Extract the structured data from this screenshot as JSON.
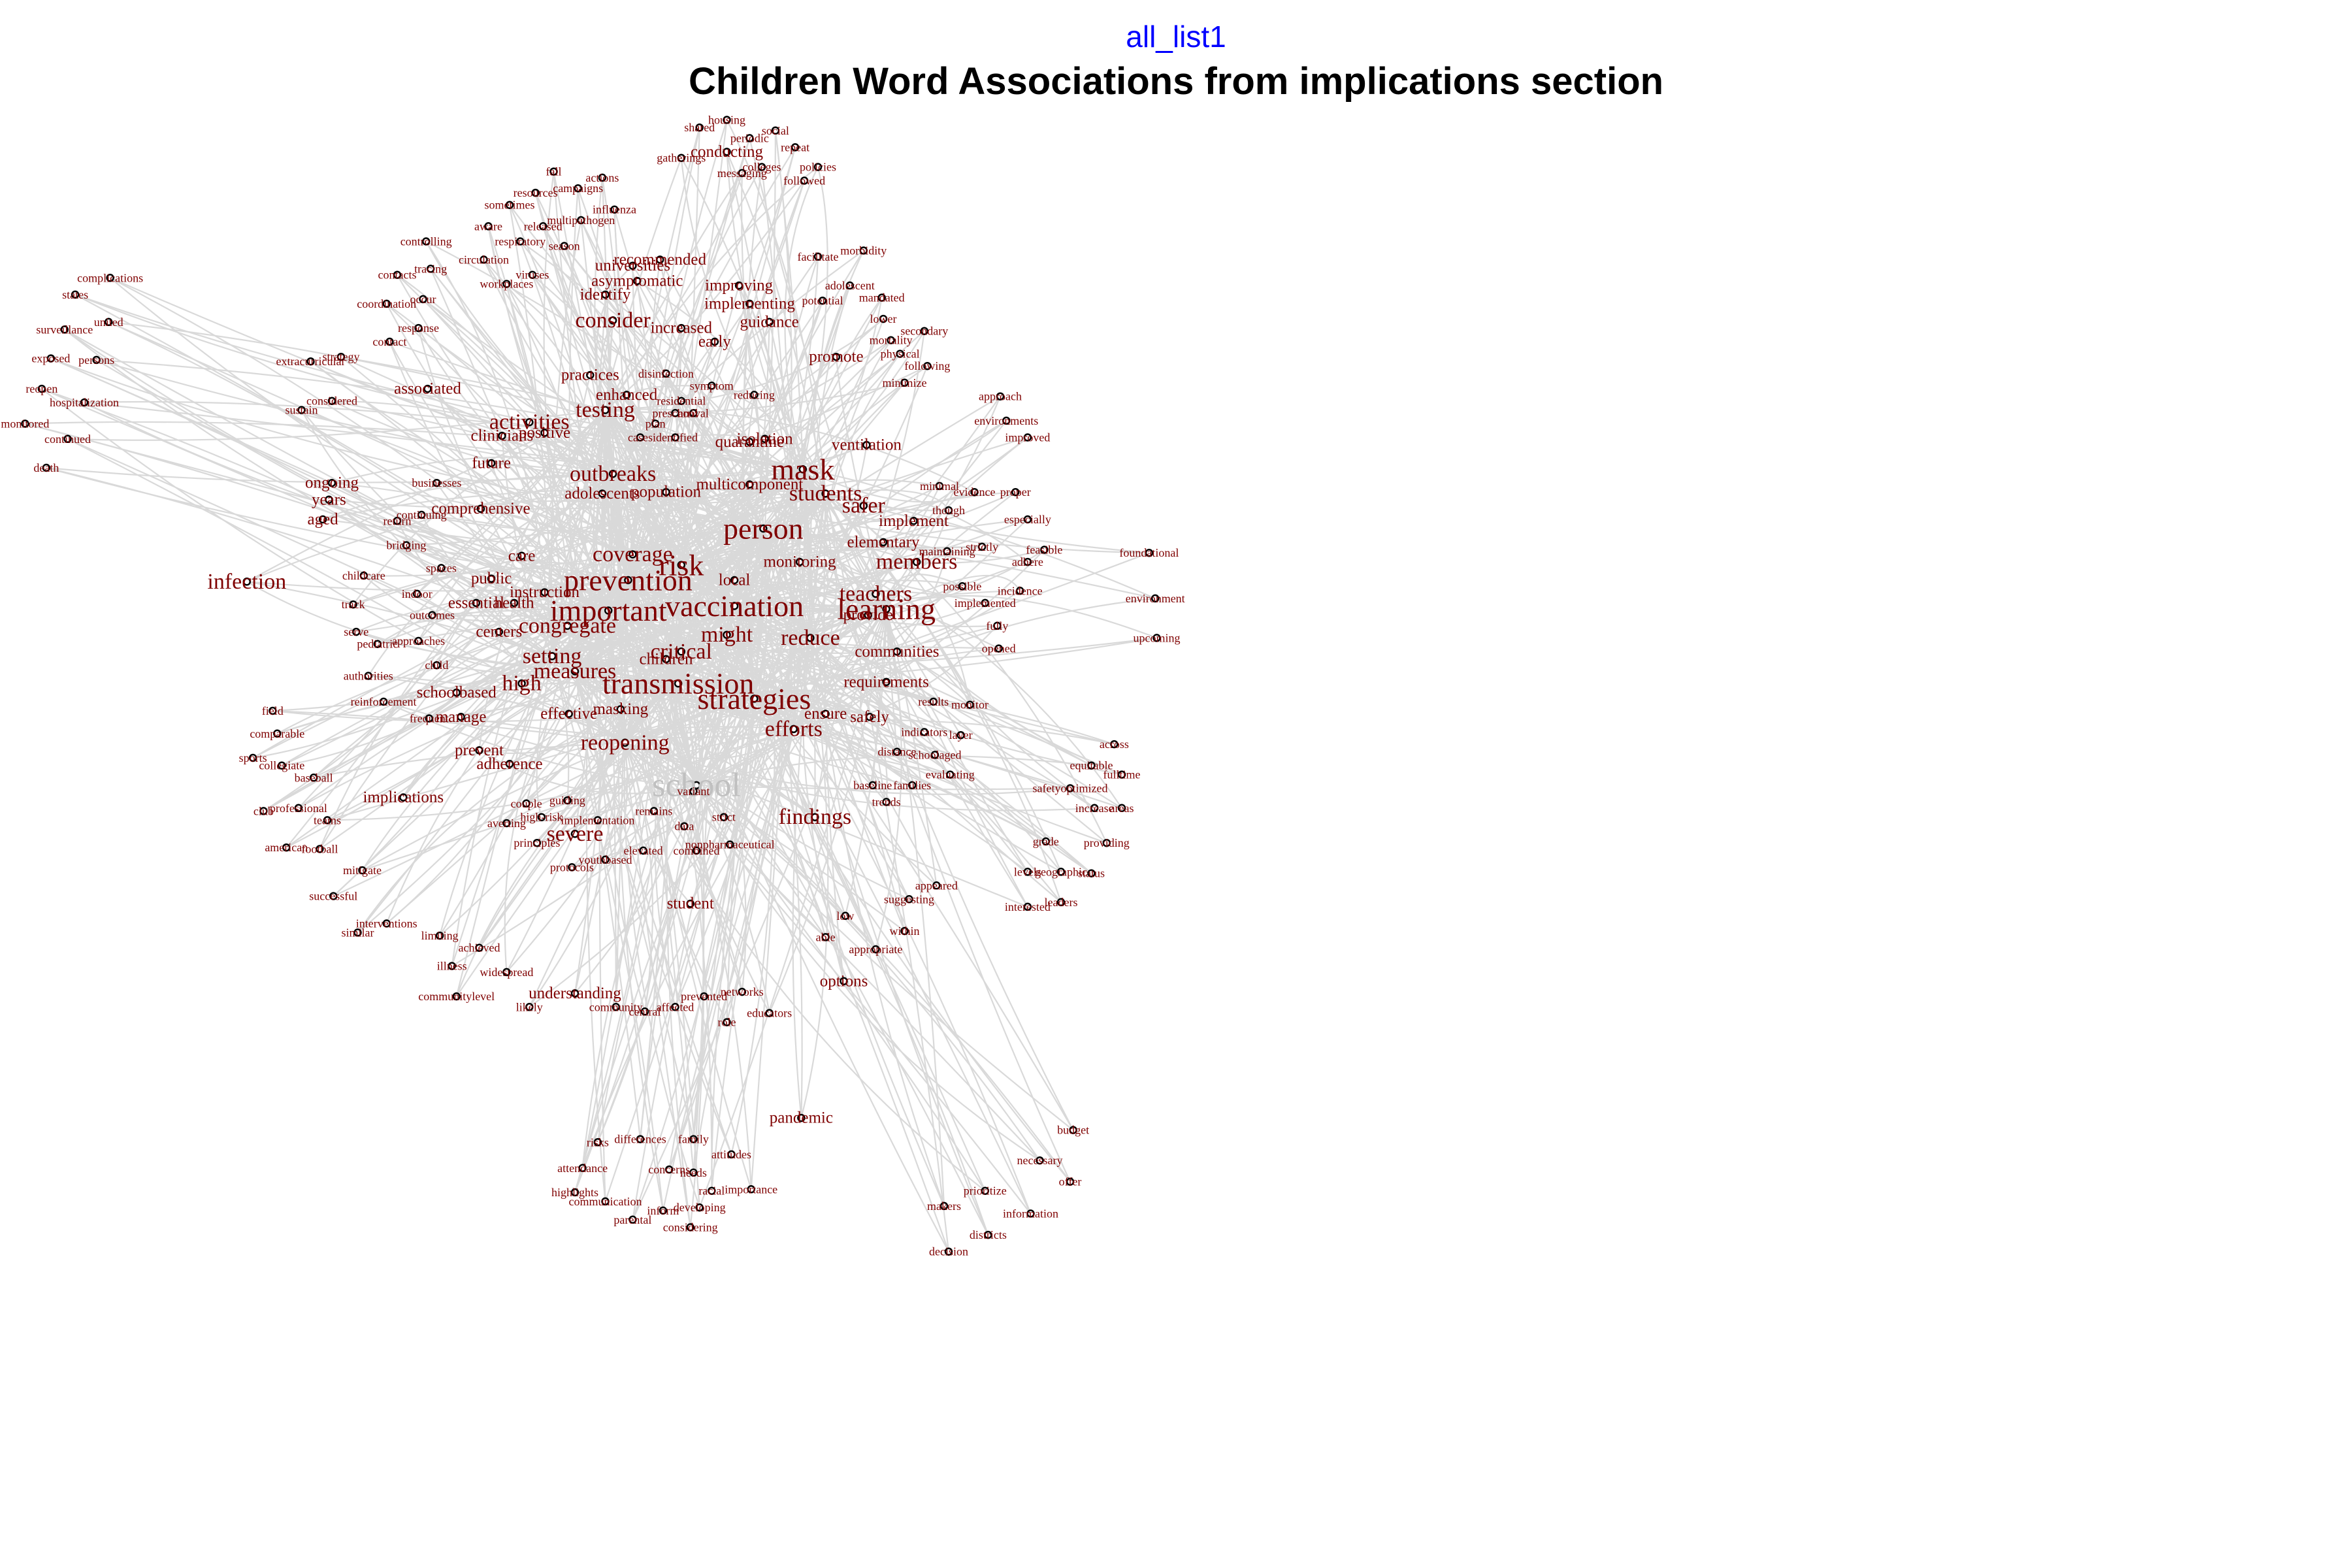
{
  "subtitle": "all_list1",
  "title": "Children Word Associations from implications section",
  "colors": {
    "edge": "#d9d9d9",
    "label": "#7f0000",
    "central_label": "#c0c0c0",
    "node": "#000000",
    "subtitle": "#0000ff"
  },
  "nodes": [
    {
      "t": "school",
      "s": 3
    },
    {
      "t": "person",
      "s": 3
    },
    {
      "t": "important",
      "s": 3
    },
    {
      "t": "vaccination",
      "s": 3
    },
    {
      "t": "transmission",
      "s": 3
    },
    {
      "t": "strategies",
      "s": 3
    },
    {
      "t": "prevention",
      "s": 3
    },
    {
      "t": "risk",
      "s": 3
    },
    {
      "t": "learning",
      "s": 3
    },
    {
      "t": "mask",
      "s": 3
    },
    {
      "t": "testing",
      "s": 2
    },
    {
      "t": "outbreaks",
      "s": 2
    },
    {
      "t": "activities",
      "s": 2
    },
    {
      "t": "students",
      "s": 2
    },
    {
      "t": "reduce",
      "s": 2
    },
    {
      "t": "high",
      "s": 2
    },
    {
      "t": "measures",
      "s": 2
    },
    {
      "t": "setting",
      "s": 2
    },
    {
      "t": "congregate",
      "s": 2
    },
    {
      "t": "efforts",
      "s": 2
    },
    {
      "t": "reopening",
      "s": 2
    },
    {
      "t": "findings",
      "s": 2
    },
    {
      "t": "severe",
      "s": 2
    },
    {
      "t": "coverage",
      "s": 2
    },
    {
      "t": "critical",
      "s": 2
    },
    {
      "t": "might",
      "s": 2
    },
    {
      "t": "members",
      "s": 2
    },
    {
      "t": "teachers",
      "s": 2
    },
    {
      "t": "safer",
      "s": 2
    },
    {
      "t": "infection",
      "s": 2
    },
    {
      "t": "consider",
      "s": 2
    },
    {
      "t": "recommended",
      "s": 1
    },
    {
      "t": "universities",
      "s": 1
    },
    {
      "t": "asymptomatic",
      "s": 1
    },
    {
      "t": "identify",
      "s": 1
    },
    {
      "t": "improving",
      "s": 1
    },
    {
      "t": "implementing",
      "s": 1
    },
    {
      "t": "increased",
      "s": 1
    },
    {
      "t": "guidance",
      "s": 1
    },
    {
      "t": "early",
      "s": 1
    },
    {
      "t": "promote",
      "s": 1
    },
    {
      "t": "practices",
      "s": 1
    },
    {
      "t": "associated",
      "s": 1
    },
    {
      "t": "clinicians",
      "s": 1
    },
    {
      "t": "positive",
      "s": 1
    },
    {
      "t": "future",
      "s": 1
    },
    {
      "t": "ongoing",
      "s": 1
    },
    {
      "t": "years",
      "s": 1
    },
    {
      "t": "aged",
      "s": 1
    },
    {
      "t": "comprehensive",
      "s": 1
    },
    {
      "t": "adolescents",
      "s": 1
    },
    {
      "t": "population",
      "s": 1
    },
    {
      "t": "multicomponent",
      "s": 1
    },
    {
      "t": "quarantine",
      "s": 1
    },
    {
      "t": "isolation",
      "s": 1
    },
    {
      "t": "ventilation",
      "s": 1
    },
    {
      "t": "elementary",
      "s": 1
    },
    {
      "t": "implement",
      "s": 1
    },
    {
      "t": "monitoring",
      "s": 1
    },
    {
      "t": "communities",
      "s": 1
    },
    {
      "t": "provide",
      "s": 1
    },
    {
      "t": "requirements",
      "s": 1
    },
    {
      "t": "ensure",
      "s": 1
    },
    {
      "t": "safely",
      "s": 1
    },
    {
      "t": "care",
      "s": 1
    },
    {
      "t": "public",
      "s": 1
    },
    {
      "t": "essential",
      "s": 1
    },
    {
      "t": "centers",
      "s": 1
    },
    {
      "t": "schoolbased",
      "s": 1
    },
    {
      "t": "effective",
      "s": 1
    },
    {
      "t": "masking",
      "s": 1
    },
    {
      "t": "manage",
      "s": 1
    },
    {
      "t": "prevent",
      "s": 1
    },
    {
      "t": "adherence",
      "s": 1
    },
    {
      "t": "implications",
      "s": 1
    },
    {
      "t": "student",
      "s": 1
    },
    {
      "t": "understanding",
      "s": 1
    },
    {
      "t": "options",
      "s": 1
    },
    {
      "t": "pandemic",
      "s": 1
    },
    {
      "t": "instruction",
      "s": 1
    },
    {
      "t": "health",
      "s": 1
    },
    {
      "t": "children",
      "s": 1
    },
    {
      "t": "local",
      "s": 1
    },
    {
      "t": "enhanced",
      "s": 1
    },
    {
      "t": "conducting",
      "s": 1
    },
    {
      "t": "complications",
      "s": 0
    },
    {
      "t": "states",
      "s": 0
    },
    {
      "t": "united",
      "s": 0
    },
    {
      "t": "surveillance",
      "s": 0
    },
    {
      "t": "exposed",
      "s": 0
    },
    {
      "t": "persons",
      "s": 0
    },
    {
      "t": "reopen",
      "s": 0
    },
    {
      "t": "hospitalization",
      "s": 0
    },
    {
      "t": "monitored",
      "s": 0
    },
    {
      "t": "continued",
      "s": 0
    },
    {
      "t": "death",
      "s": 0
    },
    {
      "t": "sustain",
      "s": 0
    },
    {
      "t": "considered",
      "s": 0
    },
    {
      "t": "extracurricular",
      "s": 0
    },
    {
      "t": "strategy",
      "s": 0
    },
    {
      "t": "contact",
      "s": 0
    },
    {
      "t": "response",
      "s": 0
    },
    {
      "t": "coordination",
      "s": 0
    },
    {
      "t": "contacts",
      "s": 0
    },
    {
      "t": "tracing",
      "s": 0
    },
    {
      "t": "controlling",
      "s": 0
    },
    {
      "t": "circulation",
      "s": 0
    },
    {
      "t": "respiratory",
      "s": 0
    },
    {
      "t": "season",
      "s": 0
    },
    {
      "t": "workplaces",
      "s": 0
    },
    {
      "t": "viruses",
      "s": 0
    },
    {
      "t": "occur",
      "s": 0
    },
    {
      "t": "sometimes",
      "s": 0
    },
    {
      "t": "aware",
      "s": 0
    },
    {
      "t": "released",
      "s": 0
    },
    {
      "t": "multipathogen",
      "s": 0
    },
    {
      "t": "influenza",
      "s": 0
    },
    {
      "t": "resources",
      "s": 0
    },
    {
      "t": "campaigns",
      "s": 0
    },
    {
      "t": "actions",
      "s": 0
    },
    {
      "t": "fall",
      "s": 0
    },
    {
      "t": "housing",
      "s": 0
    },
    {
      "t": "shared",
      "s": 0
    },
    {
      "t": "social",
      "s": 0
    },
    {
      "t": "periodic",
      "s": 0
    },
    {
      "t": "repeat",
      "s": 0
    },
    {
      "t": "gatherings",
      "s": 0
    },
    {
      "t": "colleges",
      "s": 0
    },
    {
      "t": "policies",
      "s": 0
    },
    {
      "t": "messaging",
      "s": 0
    },
    {
      "t": "followed",
      "s": 0
    },
    {
      "t": "facilitate",
      "s": 0
    },
    {
      "t": "morbidity",
      "s": 0
    },
    {
      "t": "adolescent",
      "s": 0
    },
    {
      "t": "mandated",
      "s": 0
    },
    {
      "t": "potential",
      "s": 0
    },
    {
      "t": "lower",
      "s": 0
    },
    {
      "t": "secondary",
      "s": 0
    },
    {
      "t": "mortality",
      "s": 0
    },
    {
      "t": "physical",
      "s": 0
    },
    {
      "t": "following",
      "s": 0
    },
    {
      "t": "minimize",
      "s": 0
    },
    {
      "t": "approach",
      "s": 0
    },
    {
      "t": "environments",
      "s": 0
    },
    {
      "t": "improved",
      "s": 0
    },
    {
      "t": "minimal",
      "s": 0
    },
    {
      "t": "evidence",
      "s": 0
    },
    {
      "t": "proper",
      "s": 0
    },
    {
      "t": "though",
      "s": 0
    },
    {
      "t": "especially",
      "s": 0
    },
    {
      "t": "maintaining",
      "s": 0
    },
    {
      "t": "strictly",
      "s": 0
    },
    {
      "t": "feasible",
      "s": 0
    },
    {
      "t": "adhere",
      "s": 0
    },
    {
      "t": "foundational",
      "s": 0
    },
    {
      "t": "environment",
      "s": 0
    },
    {
      "t": "possible",
      "s": 0
    },
    {
      "t": "incidence",
      "s": 0
    },
    {
      "t": "implemented",
      "s": 0
    },
    {
      "t": "fully",
      "s": 0
    },
    {
      "t": "opened",
      "s": 0
    },
    {
      "t": "upcoming",
      "s": 0
    },
    {
      "t": "results",
      "s": 0
    },
    {
      "t": "monitor",
      "s": 0
    },
    {
      "t": "indicators",
      "s": 0
    },
    {
      "t": "layer",
      "s": 0
    },
    {
      "t": "distance",
      "s": 0
    },
    {
      "t": "schoolaged",
      "s": 0
    },
    {
      "t": "baseline",
      "s": 0
    },
    {
      "t": "families",
      "s": 0
    },
    {
      "t": "evaluating",
      "s": 0
    },
    {
      "t": "trends",
      "s": 0
    },
    {
      "t": "across",
      "s": 0
    },
    {
      "t": "equitable",
      "s": 0
    },
    {
      "t": "safetyoptimized",
      "s": 0
    },
    {
      "t": "fulltime",
      "s": 0
    },
    {
      "t": "increase",
      "s": 0
    },
    {
      "t": "areas",
      "s": 0
    },
    {
      "t": "grade",
      "s": 0
    },
    {
      "t": "providing",
      "s": 0
    },
    {
      "t": "levels",
      "s": 0
    },
    {
      "t": "geographic",
      "s": 0
    },
    {
      "t": "status",
      "s": 0
    },
    {
      "t": "appeared",
      "s": 0
    },
    {
      "t": "suggesting",
      "s": 0
    },
    {
      "t": "interested",
      "s": 0
    },
    {
      "t": "leaders",
      "s": 0
    },
    {
      "t": "low",
      "s": 0
    },
    {
      "t": "within",
      "s": 0
    },
    {
      "t": "able",
      "s": 0
    },
    {
      "t": "appropriate",
      "s": 0
    },
    {
      "t": "budget",
      "s": 0
    },
    {
      "t": "necessary",
      "s": 0
    },
    {
      "t": "offer",
      "s": 0
    },
    {
      "t": "prioritize",
      "s": 0
    },
    {
      "t": "makers",
      "s": 0
    },
    {
      "t": "information",
      "s": 0
    },
    {
      "t": "districts",
      "s": 0
    },
    {
      "t": "decision",
      "s": 0
    },
    {
      "t": "risks",
      "s": 0
    },
    {
      "t": "differences",
      "s": 0
    },
    {
      "t": "family",
      "s": 0
    },
    {
      "t": "attitudes",
      "s": 0
    },
    {
      "t": "attendance",
      "s": 0
    },
    {
      "t": "concerns",
      "s": 0
    },
    {
      "t": "needs",
      "s": 0
    },
    {
      "t": "racial",
      "s": 0
    },
    {
      "t": "importance",
      "s": 0
    },
    {
      "t": "highlights",
      "s": 0
    },
    {
      "t": "communication",
      "s": 0
    },
    {
      "t": "inform",
      "s": 0
    },
    {
      "t": "developing",
      "s": 0
    },
    {
      "t": "parental",
      "s": 0
    },
    {
      "t": "considering",
      "s": 0
    },
    {
      "t": "communitylevel",
      "s": 0
    },
    {
      "t": "likely",
      "s": 0
    },
    {
      "t": "community",
      "s": 0
    },
    {
      "t": "central",
      "s": 0
    },
    {
      "t": "affected",
      "s": 0
    },
    {
      "t": "prevented",
      "s": 0
    },
    {
      "t": "networks",
      "s": 0
    },
    {
      "t": "role",
      "s": 0
    },
    {
      "t": "educators",
      "s": 0
    },
    {
      "t": "illness",
      "s": 0
    },
    {
      "t": "widespread",
      "s": 0
    },
    {
      "t": "achieved",
      "s": 0
    },
    {
      "t": "interventions",
      "s": 0
    },
    {
      "t": "similar",
      "s": 0
    },
    {
      "t": "limiting",
      "s": 0
    },
    {
      "t": "successful",
      "s": 0
    },
    {
      "t": "mitigate",
      "s": 0
    },
    {
      "t": "american",
      "s": 0
    },
    {
      "t": "football",
      "s": 0
    },
    {
      "t": "professional",
      "s": 0
    },
    {
      "t": "teams",
      "s": 0
    },
    {
      "t": "club",
      "s": 0
    },
    {
      "t": "sports",
      "s": 0
    },
    {
      "t": "collegiate",
      "s": 0
    },
    {
      "t": "baseball",
      "s": 0
    },
    {
      "t": "field",
      "s": 0
    },
    {
      "t": "comparable",
      "s": 0
    },
    {
      "t": "reinforcement",
      "s": 0
    },
    {
      "t": "frequent",
      "s": 0
    },
    {
      "t": "authorities",
      "s": 0
    },
    {
      "t": "child",
      "s": 0
    },
    {
      "t": "serve",
      "s": 0
    },
    {
      "t": "pediatric",
      "s": 0
    },
    {
      "t": "approaches",
      "s": 0
    },
    {
      "t": "track",
      "s": 0
    },
    {
      "t": "childcare",
      "s": 0
    },
    {
      "t": "indoor",
      "s": 0
    },
    {
      "t": "spaces",
      "s": 0
    },
    {
      "t": "outcomes",
      "s": 0
    },
    {
      "t": "bridging",
      "s": 0
    },
    {
      "t": "return",
      "s": 0
    },
    {
      "t": "continuing",
      "s": 0
    },
    {
      "t": "businesses",
      "s": 0
    },
    {
      "t": "cases",
      "s": 0
    },
    {
      "t": "identified",
      "s": 0
    },
    {
      "t": "symptom",
      "s": 0
    },
    {
      "t": "residential",
      "s": 0
    },
    {
      "t": "reducing",
      "s": 0
    },
    {
      "t": "preschool",
      "s": 0
    },
    {
      "t": "plan",
      "s": 0
    },
    {
      "t": "arrival",
      "s": 0
    },
    {
      "t": "disinfection",
      "s": 0
    },
    {
      "t": "couple",
      "s": 0
    },
    {
      "t": "guiding",
      "s": 0
    },
    {
      "t": "high-risk",
      "s": 0
    },
    {
      "t": "implementation",
      "s": 0
    },
    {
      "t": "averting",
      "s": 0
    },
    {
      "t": "principles",
      "s": 0
    },
    {
      "t": "protocols",
      "s": 0
    },
    {
      "t": "youthbased",
      "s": 0
    },
    {
      "t": "elevated",
      "s": 0
    },
    {
      "t": "remains",
      "s": 0
    },
    {
      "t": "data",
      "s": 0
    },
    {
      "t": "strict",
      "s": 0
    },
    {
      "t": "variant",
      "s": 0
    },
    {
      "t": "nonpharmaceutical",
      "s": 0
    },
    {
      "t": "combined",
      "s": 0
    }
  ]
}
